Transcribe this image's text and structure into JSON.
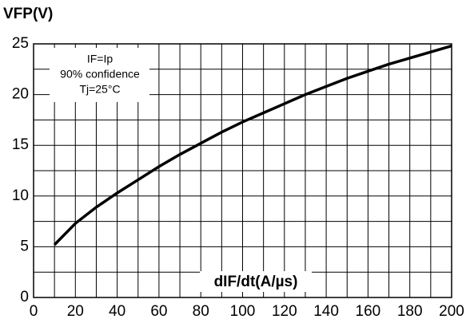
{
  "chart_data": {
    "type": "line",
    "title": "VFP(V)",
    "x_label": "dIF/dt(A/µs)",
    "annotations": [
      "IF=Ip",
      "90% confidence",
      "Tj=25°C"
    ],
    "x": [
      10,
      20,
      30,
      40,
      50,
      60,
      70,
      80,
      90,
      100,
      110,
      120,
      130,
      140,
      150,
      160,
      170,
      180,
      190,
      200
    ],
    "series": [
      {
        "name": "VFP",
        "color": "#000000",
        "values": [
          5.2,
          7.3,
          8.9,
          10.3,
          11.6,
          12.9,
          14.1,
          15.2,
          16.3,
          17.3,
          18.2,
          19.1,
          20.0,
          20.8,
          21.6,
          22.3,
          23.0,
          23.6,
          24.2,
          24.8
        ]
      }
    ],
    "xlim": [
      0,
      200
    ],
    "ylim": [
      0,
      25
    ],
    "xticks": [
      0,
      20,
      40,
      60,
      80,
      100,
      120,
      140,
      160,
      180,
      200
    ],
    "yticks": [
      0,
      5,
      10,
      15,
      20,
      25
    ],
    "x_minor_grid": [
      10,
      30,
      50,
      70,
      90,
      110,
      130,
      150,
      170,
      190
    ],
    "y_minor_grid": [
      2.5,
      7.5,
      12.5,
      17.5,
      22.5
    ],
    "grid": true
  }
}
